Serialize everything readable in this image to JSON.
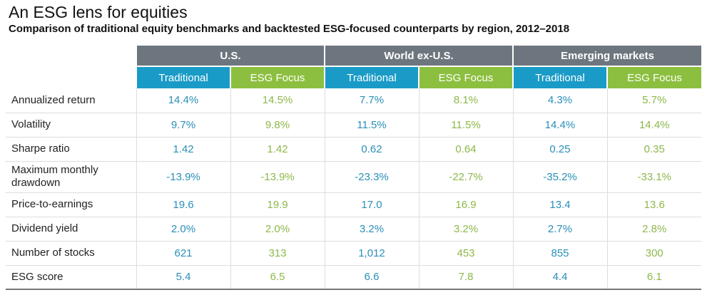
{
  "title": "An ESG lens for equities",
  "subtitle": "Comparison of traditional equity benchmarks and backtested ESG-focused counterparts by region, 2012–2018",
  "regions": [
    "U.S.",
    "World ex-U.S.",
    "Emerging markets"
  ],
  "subheaders": [
    "Traditional",
    "ESG Focus"
  ],
  "rows": [
    {
      "label": "Annualized return",
      "values": [
        "14.4%",
        "14.5%",
        "7.7%",
        "8.1%",
        "4.3%",
        "5.7%"
      ]
    },
    {
      "label": "Volatility",
      "values": [
        "9.7%",
        "9.8%",
        "11.5%",
        "11.5%",
        "14.4%",
        "14.4%"
      ]
    },
    {
      "label": "Sharpe ratio",
      "values": [
        "1.42",
        "1.42",
        "0.62",
        "0.64",
        "0.25",
        "0.35"
      ]
    },
    {
      "label": "Maximum monthly drawdown",
      "values": [
        "-13.9%",
        "-13.9%",
        "-23.3%",
        "-22.7%",
        "-35.2%",
        "-33.1%"
      ]
    },
    {
      "label": "Price-to-earnings",
      "values": [
        "19.6",
        "19.9",
        "17.0",
        "16.9",
        "13.4",
        "13.6"
      ]
    },
    {
      "label": "Dividend yield",
      "values": [
        "2.0%",
        "2.0%",
        "3.2%",
        "3.2%",
        "2.7%",
        "2.8%"
      ]
    },
    {
      "label": "Number of stocks",
      "values": [
        "621",
        "313",
        "1,012",
        "453",
        "855",
        "300"
      ]
    },
    {
      "label": "ESG score",
      "values": [
        "5.4",
        "6.5",
        "6.6",
        "7.8",
        "4.4",
        "6.1"
      ]
    }
  ],
  "colors": {
    "header": "#6d767e",
    "traditional": "#1a9bc7",
    "esg": "#8cbf3f"
  }
}
